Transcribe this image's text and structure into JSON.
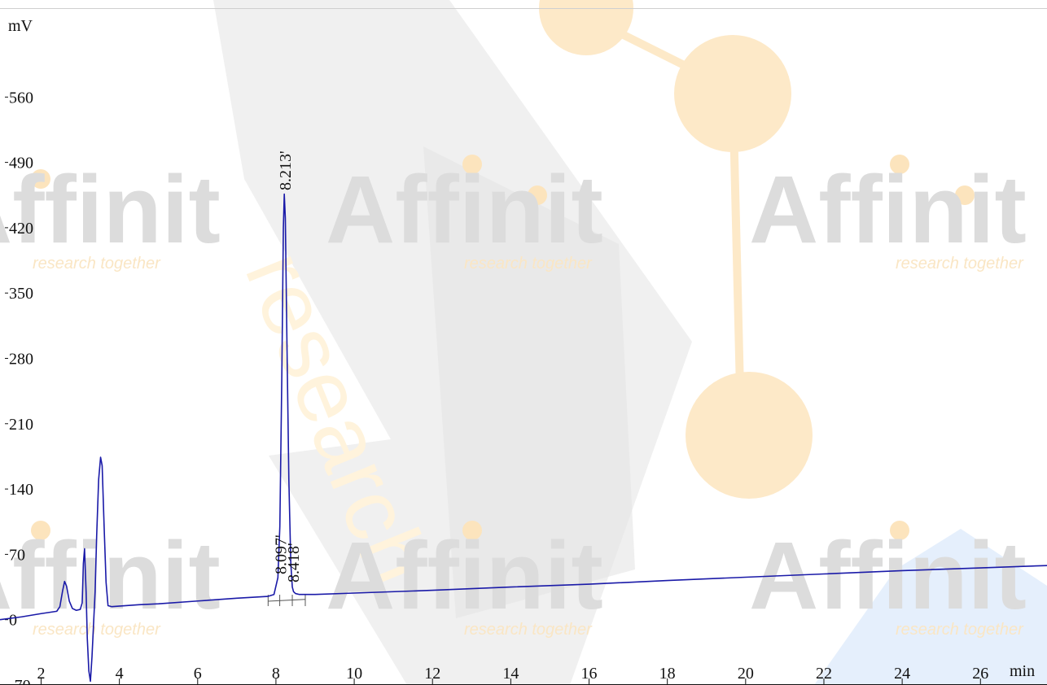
{
  "watermark": {
    "brand": "Affinit",
    "tagline": "research together",
    "big_word": "research",
    "colors": {
      "grey": "#dcdcdc",
      "orange": "#fce4bd",
      "blue": "#e0ecfb"
    }
  },
  "chart_data": {
    "type": "line",
    "title": "",
    "xlabel": "",
    "ylabel": "",
    "x_unit": "min",
    "y_unit": "mV",
    "xlim": [
      0.95,
      27.7
    ],
    "ylim": [
      -70,
      630
    ],
    "x_ticks": [
      2,
      4,
      6,
      8,
      10,
      12,
      14,
      16,
      18,
      20,
      22,
      24,
      26
    ],
    "y_ticks": [
      -70,
      0,
      70,
      140,
      210,
      280,
      350,
      420,
      490,
      560
    ],
    "grid": false,
    "line_color": "#1a1aa8",
    "series": [
      {
        "name": "",
        "points": [
          [
            0.95,
            0
          ],
          [
            1.5,
            3
          ],
          [
            2.0,
            6.5
          ],
          [
            2.4,
            9
          ],
          [
            2.48,
            14
          ],
          [
            2.55,
            31
          ],
          [
            2.6,
            41
          ],
          [
            2.65,
            36
          ],
          [
            2.72,
            20
          ],
          [
            2.8,
            12
          ],
          [
            2.9,
            10
          ],
          [
            3.0,
            11
          ],
          [
            3.05,
            18
          ],
          [
            3.08,
            60
          ],
          [
            3.11,
            76
          ],
          [
            3.15,
            30
          ],
          [
            3.18,
            -20
          ],
          [
            3.22,
            -55
          ],
          [
            3.26,
            -66
          ],
          [
            3.3,
            -40
          ],
          [
            3.34,
            -5
          ],
          [
            3.38,
            30
          ],
          [
            3.42,
            90
          ],
          [
            3.47,
            150
          ],
          [
            3.52,
            174
          ],
          [
            3.56,
            165
          ],
          [
            3.61,
            100
          ],
          [
            3.66,
            40
          ],
          [
            3.71,
            15
          ],
          [
            3.8,
            14
          ],
          [
            4.5,
            16
          ],
          [
            5.0,
            17
          ],
          [
            6.0,
            20
          ],
          [
            7.0,
            23
          ],
          [
            7.8,
            25
          ],
          [
            7.95,
            27
          ],
          [
            8.05,
            45
          ],
          [
            8.1,
            100
          ],
          [
            8.15,
            260
          ],
          [
            8.19,
            420
          ],
          [
            8.213,
            456
          ],
          [
            8.24,
            430
          ],
          [
            8.28,
            300
          ],
          [
            8.33,
            150
          ],
          [
            8.38,
            60
          ],
          [
            8.418,
            35
          ],
          [
            8.45,
            30
          ],
          [
            8.5,
            28
          ],
          [
            8.6,
            27
          ],
          [
            9.0,
            27
          ],
          [
            10.0,
            28.5
          ],
          [
            12.0,
            31.5
          ],
          [
            14.0,
            35
          ],
          [
            16.0,
            38
          ],
          [
            18.0,
            42
          ],
          [
            20.0,
            45.5
          ],
          [
            22.0,
            49
          ],
          [
            24.0,
            52.5
          ],
          [
            26.0,
            55.5
          ],
          [
            27.7,
            58
          ]
        ]
      }
    ],
    "peak_labels": [
      {
        "time": 8.213,
        "label": "8.213'"
      },
      {
        "time": 8.097,
        "label": "8.097'"
      },
      {
        "time": 8.418,
        "label": "8.418'"
      }
    ]
  }
}
